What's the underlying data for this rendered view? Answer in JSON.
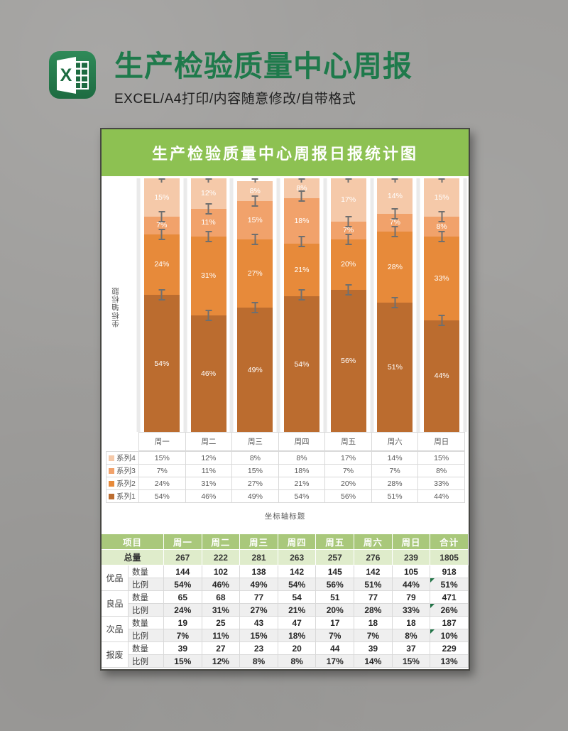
{
  "header": {
    "title": "生产检验质量中心周报",
    "subtitle": "EXCEL/A4打印/内容随意修改/自带格式",
    "icon": "excel-icon",
    "icon_letter": "X"
  },
  "chart_data": {
    "type": "bar",
    "stacked": true,
    "percent_stacked": true,
    "title": "生产检验质量中心周报日报统计图",
    "categories": [
      "周一",
      "周二",
      "周三",
      "周四",
      "周五",
      "周六",
      "周日"
    ],
    "series": [
      {
        "name": "系列1",
        "color": "#bb6c2f",
        "values": [
          54,
          46,
          49,
          54,
          56,
          51,
          44
        ]
      },
      {
        "name": "系列2",
        "color": "#e78a3a",
        "values": [
          24,
          31,
          27,
          21,
          20,
          28,
          33
        ]
      },
      {
        "name": "系列3",
        "color": "#f1a26b",
        "values": [
          7,
          11,
          15,
          18,
          7,
          7,
          8
        ]
      },
      {
        "name": "系列4",
        "color": "#f5c9a9",
        "values": [
          15,
          12,
          8,
          8,
          17,
          14,
          15
        ]
      }
    ],
    "legend_order": [
      "系列4",
      "系列3",
      "系列2",
      "系列1"
    ],
    "xlabel": "坐标轴标题",
    "ylabel": "坐标轴标题",
    "ylim": [
      0,
      100
    ],
    "value_suffix": "%",
    "error_bars": true,
    "legend_position": "bottom-table",
    "grid": "vertical-bands"
  },
  "summary_table": {
    "headers": [
      "项目",
      "周一",
      "周二",
      "周三",
      "周四",
      "周五",
      "周六",
      "周日",
      "合计"
    ],
    "total_row": {
      "label": "总量",
      "values": [
        "267",
        "222",
        "281",
        "263",
        "257",
        "276",
        "239",
        "1805"
      ]
    },
    "groups": [
      {
        "name": "优品",
        "rows": [
          {
            "label": "数量",
            "values": [
              "144",
              "102",
              "138",
              "142",
              "145",
              "142",
              "105",
              "918"
            ],
            "flag": false
          },
          {
            "label": "比例",
            "values": [
              "54%",
              "46%",
              "49%",
              "54%",
              "56%",
              "51%",
              "44%",
              "51%"
            ],
            "flag": true
          }
        ]
      },
      {
        "name": "良品",
        "rows": [
          {
            "label": "数量",
            "values": [
              "65",
              "68",
              "77",
              "54",
              "51",
              "77",
              "79",
              "471"
            ],
            "flag": false
          },
          {
            "label": "比例",
            "values": [
              "24%",
              "31%",
              "27%",
              "21%",
              "20%",
              "28%",
              "33%",
              "26%"
            ],
            "flag": true
          }
        ]
      },
      {
        "name": "次品",
        "rows": [
          {
            "label": "数量",
            "values": [
              "19",
              "25",
              "43",
              "47",
              "17",
              "18",
              "18",
              "187"
            ],
            "flag": false
          },
          {
            "label": "比例",
            "values": [
              "7%",
              "11%",
              "15%",
              "18%",
              "7%",
              "7%",
              "8%",
              "10%"
            ],
            "flag": true
          }
        ]
      },
      {
        "name": "报废",
        "rows": [
          {
            "label": "数量",
            "values": [
              "39",
              "27",
              "23",
              "20",
              "44",
              "39",
              "37",
              "229"
            ],
            "flag": false
          },
          {
            "label": "比例",
            "values": [
              "15%",
              "12%",
              "8%",
              "8%",
              "17%",
              "14%",
              "15%",
              "13%"
            ],
            "flag": false
          }
        ]
      }
    ]
  },
  "colors": {
    "banner_green": "#8dc152",
    "title_green": "#1e7a4b",
    "table_header_green": "#a9c87b",
    "total_row_green": "#dfeccb",
    "axis_text_gray": "#595959",
    "error_bar_gray": "#6f6f6f",
    "flag_green": "#217346"
  }
}
